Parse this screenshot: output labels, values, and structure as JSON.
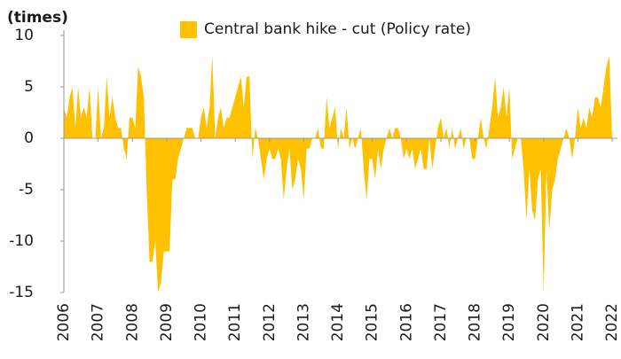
{
  "chart_data": {
    "type": "area",
    "unit_label": "(times)",
    "categories": [
      "2006",
      null,
      null,
      null,
      null,
      null,
      null,
      null,
      null,
      null,
      null,
      null,
      "2007",
      null,
      null,
      null,
      null,
      null,
      null,
      null,
      null,
      null,
      null,
      null,
      "2008",
      null,
      null,
      null,
      null,
      null,
      null,
      null,
      null,
      null,
      null,
      null,
      "2009",
      null,
      null,
      null,
      null,
      null,
      null,
      null,
      null,
      null,
      null,
      null,
      "2010",
      null,
      null,
      null,
      null,
      null,
      null,
      null,
      null,
      null,
      null,
      null,
      "2011",
      null,
      null,
      null,
      null,
      null,
      null,
      null,
      null,
      null,
      null,
      null,
      "2012",
      null,
      null,
      null,
      null,
      null,
      null,
      null,
      null,
      null,
      null,
      null,
      "2013",
      null,
      null,
      null,
      null,
      null,
      null,
      null,
      null,
      null,
      null,
      null,
      "2014",
      null,
      null,
      null,
      null,
      null,
      null,
      null,
      null,
      null,
      null,
      null,
      "2015",
      null,
      null,
      null,
      null,
      null,
      null,
      null,
      null,
      null,
      null,
      null,
      "2016",
      null,
      null,
      null,
      null,
      null,
      null,
      null,
      null,
      null,
      null,
      null,
      "2017",
      null,
      null,
      null,
      null,
      null,
      null,
      null,
      null,
      null,
      null,
      null,
      "2018",
      null,
      null,
      null,
      null,
      null,
      null,
      null,
      null,
      null,
      null,
      null,
      "2019",
      null,
      null,
      null,
      null,
      null,
      null,
      null,
      null,
      null,
      null,
      null,
      "2020",
      null,
      null,
      null,
      null,
      null,
      null,
      null,
      null,
      null,
      null,
      null,
      "2021",
      null,
      null,
      null,
      null,
      null,
      null,
      null,
      null,
      null,
      null,
      null,
      "2022"
    ],
    "series": [
      {
        "name": "Central bank hike - cut (Policy rate)",
        "color": "#ffc000",
        "values": [
          3,
          2,
          4,
          5,
          1,
          5,
          2,
          3,
          2,
          5,
          0,
          0,
          5,
          0,
          1,
          6,
          2,
          4,
          2,
          1,
          1,
          -1,
          -2,
          2,
          2,
          1,
          7,
          6,
          4,
          -5,
          -12,
          -12,
          -10,
          -15,
          -14,
          -11,
          -11,
          -11,
          -4,
          -4,
          -2,
          -1,
          0,
          1,
          1,
          1,
          0,
          0,
          2,
          3,
          1,
          3,
          8,
          0,
          2,
          3,
          1,
          2,
          2,
          3,
          4,
          5,
          6,
          3,
          6,
          6,
          -2,
          1,
          0,
          -2,
          -4,
          -2,
          -1,
          -2,
          -2,
          -1,
          -2,
          -6,
          -3,
          -1,
          -5,
          -4,
          -2,
          -3,
          -6,
          -1,
          -1,
          0,
          0,
          1,
          -1,
          -1,
          4,
          1,
          2,
          3,
          -1,
          1,
          0,
          3,
          -1,
          0,
          -1,
          0,
          1,
          -3,
          -6,
          -2,
          -2,
          -4,
          -1,
          -3,
          -1,
          0,
          1,
          0,
          1,
          1,
          0,
          -2,
          -1,
          -2,
          -1,
          -3,
          -2,
          -1,
          -3,
          -3,
          0,
          -3,
          -1,
          1,
          2,
          0,
          1,
          -1,
          1,
          -1,
          0,
          1,
          -1,
          0,
          0,
          -2,
          -2,
          0,
          2,
          0,
          -1,
          1,
          3,
          6,
          2,
          3,
          5,
          2,
          5,
          -2,
          -1,
          0,
          0,
          -3,
          -8,
          -3,
          -7,
          -8,
          -4,
          -3,
          -15,
          -3,
          -9,
          -5,
          -4,
          -2,
          -1,
          0,
          1,
          0,
          -2,
          0,
          3,
          1,
          2,
          1,
          3,
          2,
          4,
          4,
          3,
          5,
          7,
          8,
          0
        ]
      }
    ],
    "ylim": [
      -15,
      10
    ],
    "yticks": [
      -15,
      -10,
      -5,
      0,
      5,
      10
    ]
  }
}
